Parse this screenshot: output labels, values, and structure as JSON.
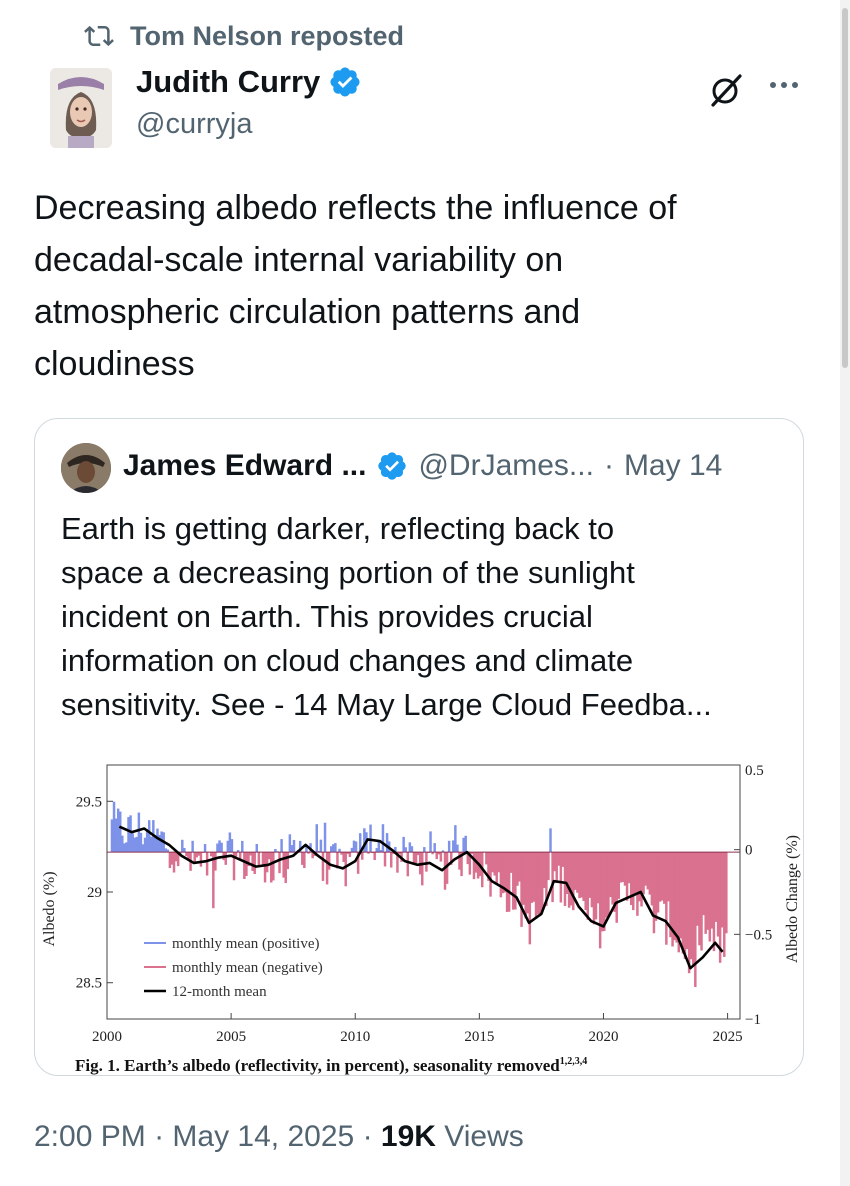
{
  "repost": {
    "label": "Tom Nelson reposted",
    "icon": "repost-icon"
  },
  "author": {
    "name": "Judith Curry",
    "handle": "@curryja",
    "verified": true
  },
  "post": {
    "lines": [
      "Decreasing albedo reflects the influence of",
      "decadal-scale internal variability on",
      "atmospheric circulation patterns and",
      "cloudiness"
    ]
  },
  "quoted": {
    "name": "James Edward ...",
    "handle": "@DrJames...",
    "separator": "·",
    "date": "May 14",
    "lines": [
      "Earth is getting darker, reflecting back to",
      "space a decreasing portion of the sunlight",
      "incident on Earth. This provides crucial",
      "information on cloud changes and climate",
      "sensitivity. See - 14 May Large Cloud Feedba..."
    ]
  },
  "chart_data": {
    "type": "bar",
    "title": "",
    "caption": "Fig. 1. Earth’s albedo (reflectivity, in percent), seasonality removed",
    "caption_superscript": "1,2,3,4",
    "xlabel": "",
    "ylabel_left": "Albedo (%)",
    "ylabel_right": "Albedo Change (%)",
    "xlim": [
      2000,
      2025.5
    ],
    "ylim_left": [
      28.3,
      29.7
    ],
    "ylim_right": [
      -1,
      0.5
    ],
    "x_ticks": [
      "2000",
      "2005",
      "2010",
      "2015",
      "2020",
      "2025"
    ],
    "y_ticks_left": [
      "28.5",
      "29",
      "29.5"
    ],
    "y_ticks_right": [
      "0.5",
      "0",
      "-0.5",
      "-1"
    ],
    "baseline": 29.22,
    "legend_position": "bottom-left",
    "legend": [
      {
        "label": "monthly mean (positive)",
        "color": "#7d92e8"
      },
      {
        "label": "monthly mean (negative)",
        "color": "#d9718f"
      },
      {
        "label": "12-month mean",
        "color": "#000000"
      }
    ],
    "colors": {
      "positive": "#7d92e8",
      "negative": "#d9718f",
      "mean": "#000000"
    },
    "mean_series": {
      "name": "12-month mean",
      "x": [
        2000.5,
        2001,
        2001.5,
        2002,
        2002.5,
        2003,
        2003.5,
        2004,
        2004.5,
        2005,
        2005.5,
        2006,
        2006.5,
        2007,
        2007.5,
        2008,
        2008.5,
        2009,
        2009.5,
        2010,
        2010.5,
        2011,
        2011.5,
        2012,
        2012.5,
        2013,
        2013.5,
        2014,
        2014.5,
        2015,
        2015.5,
        2016,
        2016.5,
        2017,
        2017.5,
        2018,
        2018.5,
        2019,
        2019.5,
        2020,
        2020.5,
        2021,
        2021.5,
        2022,
        2022.5,
        2023,
        2023.5,
        2024,
        2024.5,
        2024.8
      ],
      "y": [
        29.36,
        29.33,
        29.35,
        29.3,
        29.26,
        29.2,
        29.16,
        29.17,
        29.19,
        29.2,
        29.17,
        29.14,
        29.15,
        29.18,
        29.2,
        29.26,
        29.2,
        29.15,
        29.13,
        29.17,
        29.29,
        29.28,
        29.23,
        29.17,
        29.15,
        29.16,
        29.12,
        29.18,
        29.22,
        29.15,
        29.06,
        29.02,
        28.97,
        28.83,
        28.88,
        29.06,
        29.05,
        28.92,
        28.84,
        28.81,
        28.94,
        28.97,
        29.0,
        28.87,
        28.84,
        28.75,
        28.58,
        28.64,
        28.72,
        28.67
      ]
    }
  },
  "footer": {
    "time": "2:00 PM",
    "dot1": "·",
    "date": "May 14, 2025",
    "dot2": "·",
    "views_count": "19K",
    "views_label": "Views"
  }
}
